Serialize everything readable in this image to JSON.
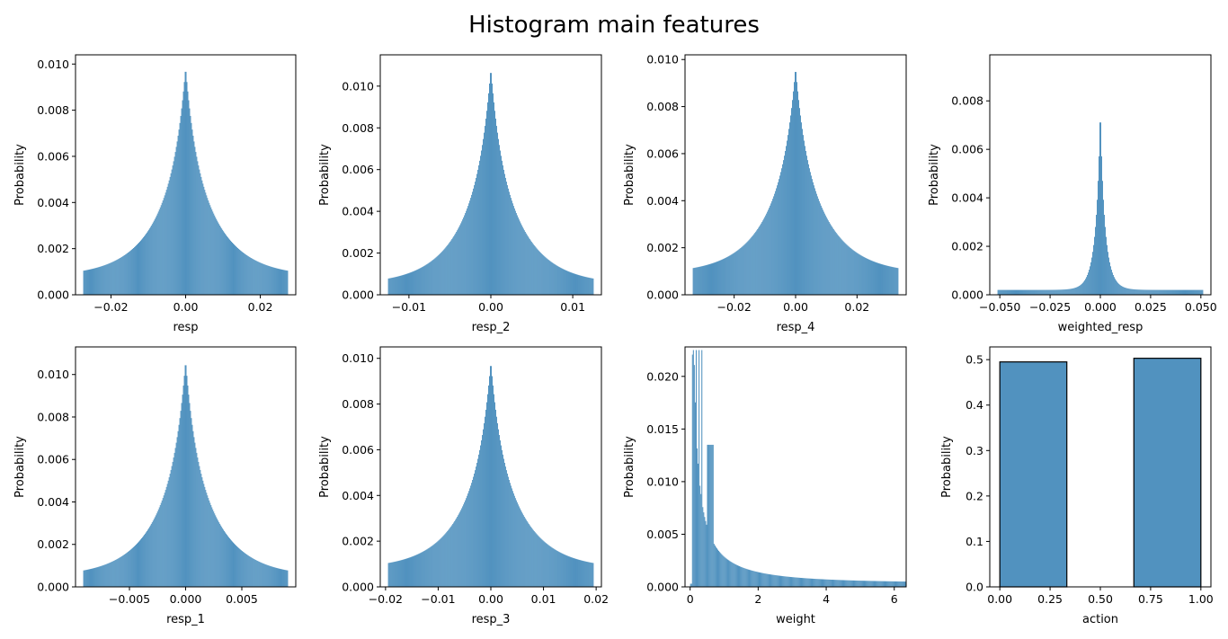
{
  "figure": {
    "title": "Histogram main features"
  },
  "colors": {
    "bar": "#5192bf",
    "edge": "#000000",
    "axis": "#000000"
  },
  "chart_data": [
    {
      "type": "bar",
      "xlabel": "resp",
      "ylabel": "Probability",
      "distribution": {
        "kind": "laplace",
        "center": 0.0,
        "peak": 0.0099,
        "tail": 0.0008,
        "bins": 230
      },
      "xlim": [
        -0.0295,
        0.0295
      ],
      "ylim": [
        0,
        0.0104
      ],
      "xticks": [
        -0.02,
        0.0,
        0.02
      ],
      "xtick_labels": [
        "−0.02",
        "0.00",
        "0.02"
      ],
      "yticks": [
        0,
        0.002,
        0.004,
        0.006,
        0.008,
        0.01
      ],
      "ytick_labels": [
        "0.000",
        "0.002",
        "0.004",
        "0.006",
        "0.008",
        "0.010"
      ]
    },
    {
      "type": "bar",
      "xlabel": "resp_2",
      "ylabel": "Probability",
      "distribution": {
        "kind": "laplace",
        "center": 0.0,
        "peak": 0.0109,
        "tail": 0.0005,
        "bins": 230
      },
      "xlim": [
        -0.0135,
        0.0135
      ],
      "ylim": [
        0,
        0.0115
      ],
      "xticks": [
        -0.01,
        0.0,
        0.01
      ],
      "xtick_labels": [
        "−0.01",
        "0.00",
        "0.01"
      ],
      "yticks": [
        0,
        0.002,
        0.004,
        0.006,
        0.008,
        0.01
      ],
      "ytick_labels": [
        "0.000",
        "0.002",
        "0.004",
        "0.006",
        "0.008",
        "0.010"
      ]
    },
    {
      "type": "bar",
      "xlabel": "resp_4",
      "ylabel": "Probability",
      "distribution": {
        "kind": "laplace",
        "center": 0.0,
        "peak": 0.0097,
        "tail": 0.0009,
        "bins": 230
      },
      "xlim": [
        -0.036,
        0.036
      ],
      "ylim": [
        0,
        0.0102
      ],
      "xticks": [
        -0.02,
        0.0,
        0.02
      ],
      "xtick_labels": [
        "−0.02",
        "0.00",
        "0.02"
      ],
      "yticks": [
        0,
        0.002,
        0.004,
        0.006,
        0.008,
        0.01
      ],
      "ytick_labels": [
        "0.000",
        "0.002",
        "0.004",
        "0.006",
        "0.008",
        "0.010"
      ]
    },
    {
      "type": "bar",
      "xlabel": "weighted_resp",
      "ylabel": "Probability",
      "distribution": {
        "kind": "sharp",
        "center": 0.0,
        "peak": 0.0082,
        "tail": 0.0002,
        "bins": 230
      },
      "xlim": [
        -0.055,
        0.055
      ],
      "ylim": [
        0,
        0.0099
      ],
      "xticks": [
        -0.05,
        -0.025,
        0.0,
        0.025,
        0.05
      ],
      "xtick_labels": [
        "−0.050",
        "−0.025",
        "0.000",
        "0.025",
        "0.050"
      ],
      "yticks": [
        0,
        0.002,
        0.004,
        0.006,
        0.008
      ],
      "ytick_labels": [
        "0.000",
        "0.002",
        "0.004",
        "0.006",
        "0.008"
      ]
    },
    {
      "type": "bar",
      "xlabel": "resp_1",
      "ylabel": "Probability",
      "distribution": {
        "kind": "laplace",
        "center": 0.0,
        "peak": 0.0107,
        "tail": 0.0005,
        "bins": 230
      },
      "xlim": [
        -0.0098,
        0.0098
      ],
      "ylim": [
        0,
        0.0113
      ],
      "xticks": [
        -0.005,
        0.0,
        0.005
      ],
      "xtick_labels": [
        "−0.005",
        "0.000",
        "0.005"
      ],
      "yticks": [
        0,
        0.002,
        0.004,
        0.006,
        0.008,
        0.01
      ],
      "ytick_labels": [
        "0.000",
        "0.002",
        "0.004",
        "0.006",
        "0.008",
        "0.010"
      ]
    },
    {
      "type": "bar",
      "xlabel": "resp_3",
      "ylabel": "Probability",
      "distribution": {
        "kind": "laplace",
        "center": 0.0,
        "peak": 0.0099,
        "tail": 0.0008,
        "bins": 230
      },
      "xlim": [
        -0.021,
        0.021
      ],
      "ylim": [
        0,
        0.0105
      ],
      "xticks": [
        -0.02,
        -0.01,
        0.0,
        0.01,
        0.02
      ],
      "xtick_labels": [
        "−0.02",
        "−0.01",
        "0.00",
        "0.01",
        "0.02"
      ],
      "yticks": [
        0,
        0.002,
        0.004,
        0.006,
        0.008,
        0.01
      ],
      "ytick_labels": [
        "0.000",
        "0.002",
        "0.004",
        "0.006",
        "0.008",
        "0.010"
      ]
    },
    {
      "type": "bar",
      "xlabel": "weight",
      "ylabel": "Probability",
      "distribution": {
        "kind": "weight",
        "peak": 0.0225,
        "tail": 0.0004,
        "bins": 230
      },
      "xlim": [
        -0.15,
        6.35
      ],
      "ylim": [
        0,
        0.0228
      ],
      "xticks": [
        0,
        2,
        4,
        6
      ],
      "xtick_labels": [
        "0",
        "2",
        "4",
        "6"
      ],
      "yticks": [
        0,
        0.005,
        0.01,
        0.015,
        0.02
      ],
      "ytick_labels": [
        "0.000",
        "0.005",
        "0.010",
        "0.015",
        "0.020"
      ]
    },
    {
      "type": "bar",
      "xlabel": "action",
      "ylabel": "Probability",
      "bars": [
        {
          "x0": 0.0,
          "x1": 0.3333,
          "value": 0.495
        },
        {
          "x0": 0.6667,
          "x1": 1.0,
          "value": 0.503
        }
      ],
      "xlim": [
        -0.05,
        1.05
      ],
      "ylim": [
        0,
        0.528
      ],
      "xticks": [
        0,
        0.25,
        0.5,
        0.75,
        1.0
      ],
      "xtick_labels": [
        "0.00",
        "0.25",
        "0.50",
        "0.75",
        "1.00"
      ],
      "yticks": [
        0,
        0.1,
        0.2,
        0.3,
        0.4,
        0.5
      ],
      "ytick_labels": [
        "0.0",
        "0.1",
        "0.2",
        "0.3",
        "0.4",
        "0.5"
      ]
    }
  ]
}
